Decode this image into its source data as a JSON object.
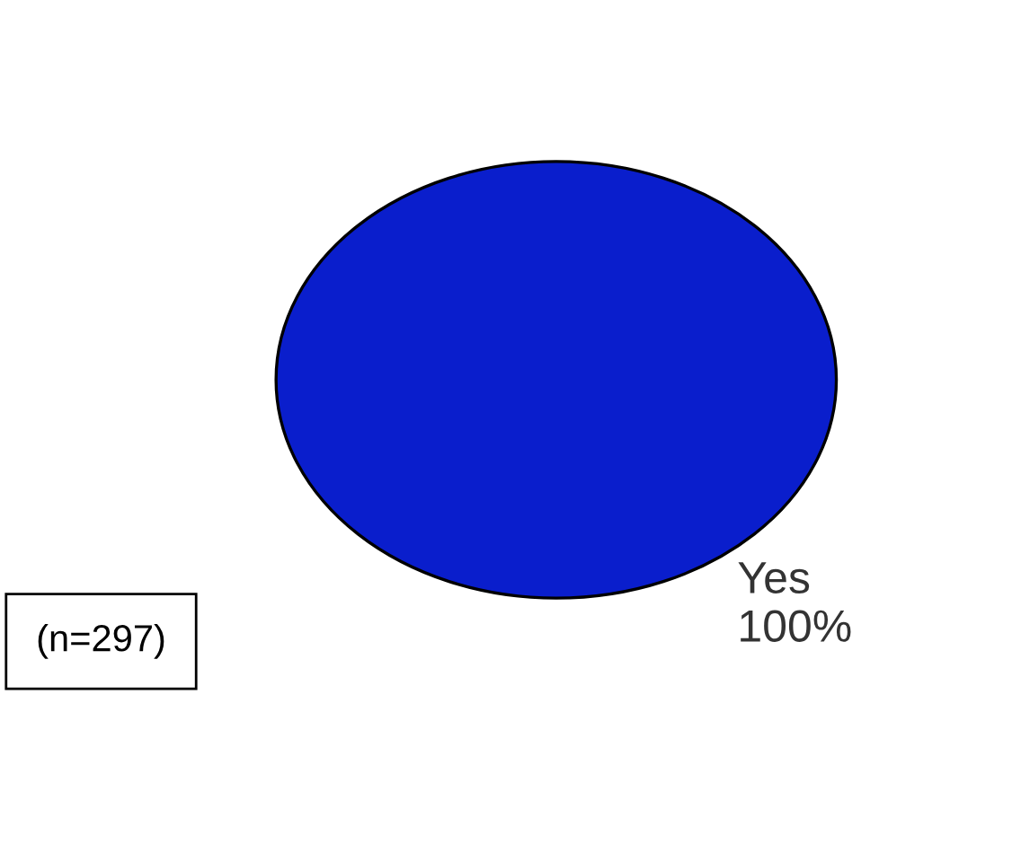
{
  "chart_data": {
    "type": "pie",
    "categories": [
      "Yes"
    ],
    "values": [
      100
    ],
    "colors": [
      "#0a1ecc"
    ],
    "value_labels": [
      "100%"
    ],
    "annotations": [
      "(n=297)"
    ]
  }
}
